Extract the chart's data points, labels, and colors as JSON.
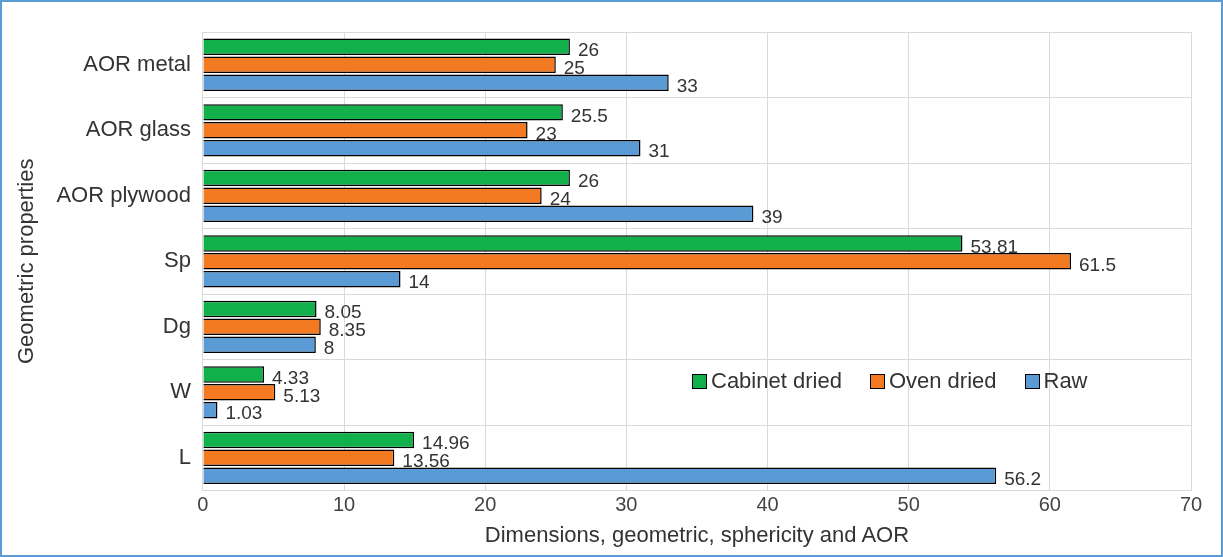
{
  "chart_data": {
    "type": "bar",
    "orientation": "horizontal",
    "xlabel": "Dimensions, geometric, sphericity and AOR",
    "ylabel": "Geometric properties",
    "categories": [
      "AOR metal",
      "AOR glass",
      "AOR plywood",
      "Sp",
      "Dg",
      "W",
      "L"
    ],
    "series": [
      {
        "name": "Cabinet dried",
        "color": "#12b04a",
        "values": [
          26,
          25.5,
          26,
          53.81,
          8.05,
          4.33,
          14.96
        ]
      },
      {
        "name": "Oven dried",
        "color": "#f47a22",
        "values": [
          25,
          23,
          24,
          61.5,
          8.35,
          5.13,
          13.56
        ]
      },
      {
        "name": "Raw",
        "color": "#5b9bd5",
        "values": [
          33,
          31,
          39,
          14,
          8,
          1.03,
          56.2
        ]
      }
    ],
    "xlim": [
      0,
      70
    ],
    "xticks": [
      0,
      10,
      20,
      30,
      40,
      50,
      60,
      70
    ],
    "grid": true,
    "legend": "right",
    "data_labels": true
  }
}
